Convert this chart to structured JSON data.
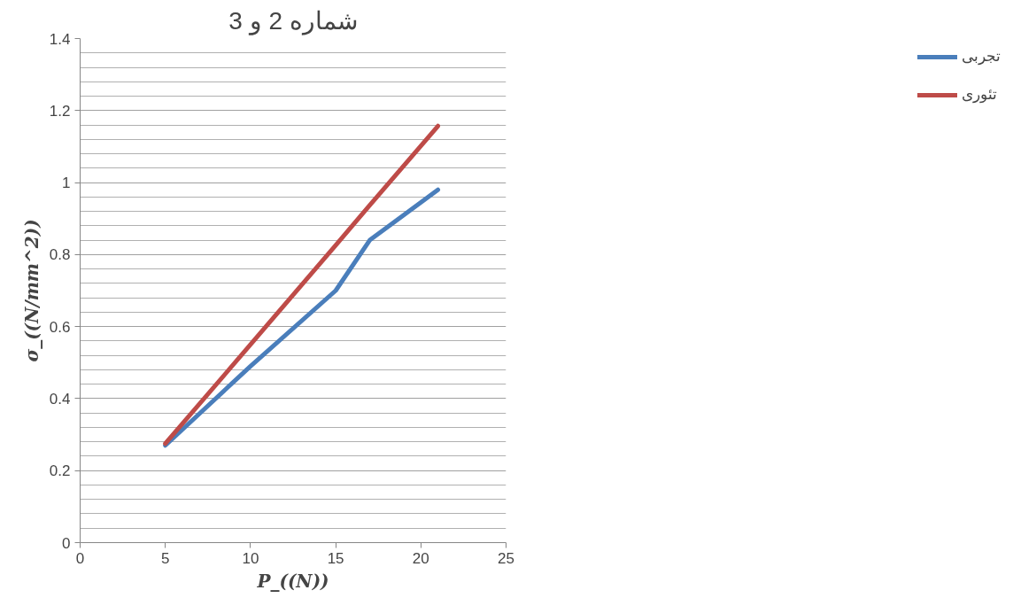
{
  "chart_data": {
    "type": "line",
    "title": "شماره 2 و 3",
    "xlabel": "P_((N))",
    "ylabel": "σ_((N/mm^2))",
    "x": [
      5,
      10,
      15,
      17,
      21
    ],
    "series": [
      {
        "name": "تجربی",
        "color": "#4a7ebb",
        "values": [
          0.27,
          0.49,
          0.7,
          0.84,
          0.98
        ]
      },
      {
        "name": "تئوری",
        "color": "#be4b48",
        "values": [
          0.275,
          0.55,
          0.826,
          0.937,
          1.157
        ]
      }
    ],
    "xlim": [
      0,
      25
    ],
    "ylim": [
      0,
      1.4
    ],
    "xticks": [
      0,
      5,
      10,
      15,
      20,
      25
    ],
    "yticks": [
      0,
      0.2,
      0.4,
      0.6,
      0.8,
      1,
      1.2,
      1.4
    ],
    "grid": "y",
    "legend": "right",
    "marker": "none",
    "line_style": "solid"
  }
}
